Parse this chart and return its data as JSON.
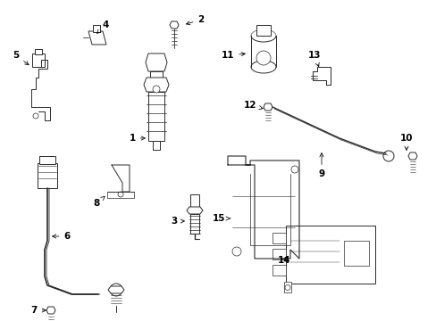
{
  "background_color": "#ffffff",
  "line_color": "#2a2a2a",
  "label_color": "#000000",
  "label_fontsize": 7.5,
  "fig_width": 4.89,
  "fig_height": 3.6,
  "dpi": 100
}
